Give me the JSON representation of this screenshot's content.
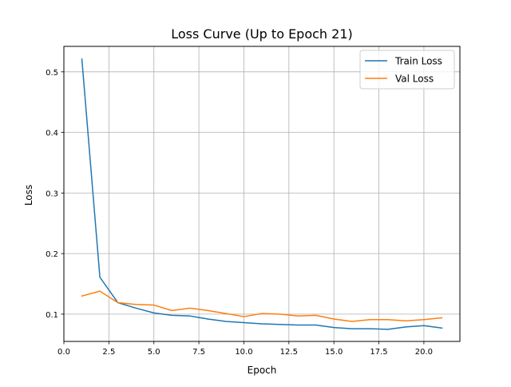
{
  "chart_data": {
    "type": "line",
    "title": "Loss Curve (Up to Epoch 21)",
    "xlabel": "Epoch",
    "ylabel": "Loss",
    "xlim": [
      0.0,
      22.0
    ],
    "ylim": [
      0.055,
      0.542
    ],
    "xticks": [
      0.0,
      2.5,
      5.0,
      7.5,
      10.0,
      12.5,
      15.0,
      17.5,
      20.0
    ],
    "xtick_labels": [
      "0.0",
      "2.5",
      "5.0",
      "7.5",
      "10.0",
      "12.5",
      "15.0",
      "17.5",
      "20.0"
    ],
    "yticks": [
      0.1,
      0.2,
      0.3,
      0.4,
      0.5
    ],
    "ytick_labels": [
      "0.1",
      "0.2",
      "0.3",
      "0.4",
      "0.5"
    ],
    "grid": true,
    "legend_position": "top-right",
    "x": [
      1,
      2,
      3,
      4,
      5,
      6,
      7,
      8,
      9,
      10,
      11,
      12,
      13,
      14,
      15,
      16,
      17,
      18,
      19,
      20,
      21
    ],
    "series": [
      {
        "name": "Train Loss",
        "color": "#1f77b4",
        "values": [
          0.521,
          0.161,
          0.119,
          0.11,
          0.102,
          0.098,
          0.097,
          0.092,
          0.088,
          0.086,
          0.084,
          0.083,
          0.082,
          0.082,
          0.078,
          0.076,
          0.076,
          0.075,
          0.079,
          0.081,
          0.077
        ]
      },
      {
        "name": "Val Loss",
        "color": "#ff7f0e",
        "values": [
          0.13,
          0.138,
          0.119,
          0.116,
          0.115,
          0.106,
          0.11,
          0.106,
          0.101,
          0.096,
          0.101,
          0.1,
          0.097,
          0.098,
          0.092,
          0.088,
          0.091,
          0.091,
          0.089,
          0.091,
          0.094
        ]
      }
    ]
  }
}
